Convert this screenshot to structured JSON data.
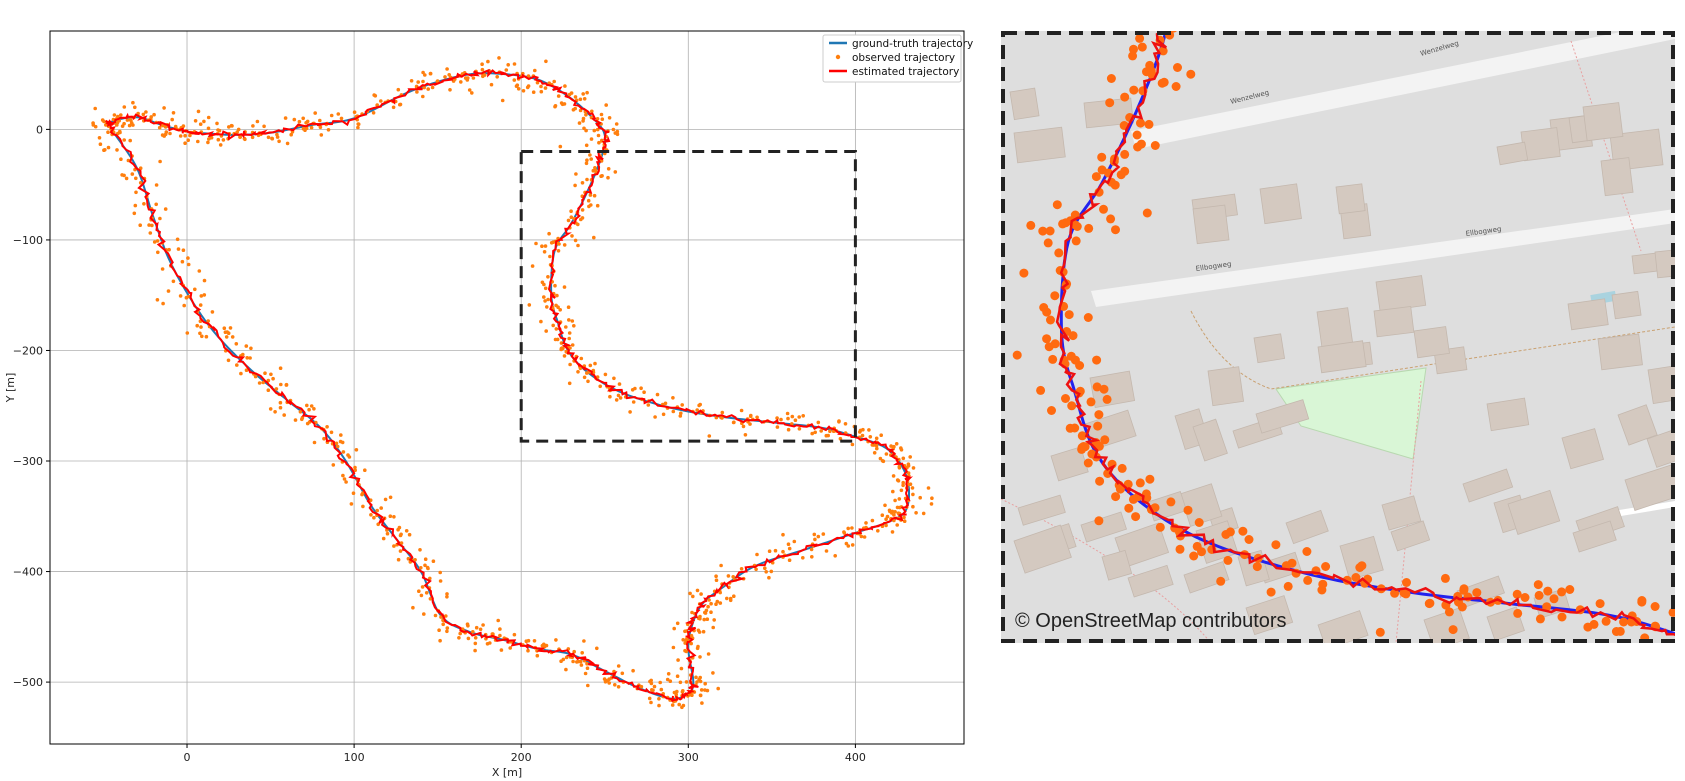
{
  "chart_data": {
    "type": "line",
    "xlabel": "X [m]",
    "ylabel": "Y [m]",
    "xlim": [
      -82,
      465
    ],
    "ylim": [
      -556,
      89
    ],
    "grid": true,
    "xticks": [
      0,
      100,
      200,
      300,
      400
    ],
    "yticks": [
      0,
      -100,
      -200,
      -300,
      -400,
      -500
    ],
    "xtick_labels": [
      "0",
      "100",
      "200",
      "300",
      "400"
    ],
    "ytick_labels": [
      "0",
      "−100",
      "−200",
      "−300",
      "−400",
      "−500"
    ],
    "legend_position": "top-right",
    "series": [
      {
        "name": "ground-truth trajectory",
        "style": "line",
        "color": "#1f77b4",
        "x": [
          -45,
          -30,
          -15,
          0,
          15,
          30,
          50,
          75,
          100,
          130,
          150,
          170,
          190,
          210,
          228,
          243,
          250,
          248,
          240,
          230,
          220,
          218,
          222,
          228,
          240,
          260,
          290,
          320,
          350,
          380,
          400,
          418,
          428,
          432,
          430,
          420,
          400,
          370,
          340,
          320,
          308,
          302,
          300,
          303,
          300,
          290,
          270,
          250,
          230,
          210,
          190,
          170,
          152,
          140,
          125,
          110,
          95,
          80,
          60,
          40,
          20,
          5,
          -10,
          -20,
          -30,
          -45
        ],
        "y": [
          7,
          11,
          4,
          -2,
          -4,
          -5,
          -3,
          4,
          10,
          32,
          43,
          50,
          50,
          45,
          30,
          10,
          -5,
          -25,
          -55,
          -85,
          -110,
          -150,
          -175,
          -200,
          -220,
          -238,
          -252,
          -260,
          -265,
          -270,
          -278,
          -288,
          -305,
          -325,
          -345,
          -355,
          -365,
          -380,
          -395,
          -415,
          -430,
          -450,
          -470,
          -500,
          -510,
          -515,
          -505,
          -490,
          -475,
          -470,
          -462,
          -455,
          -440,
          -400,
          -370,
          -340,
          -300,
          -270,
          -245,
          -220,
          -190,
          -160,
          -120,
          -80,
          -35,
          0
        ]
      },
      {
        "name": "observed trajectory",
        "style": "scatter",
        "color": "#ff7f0e",
        "n_points": 1100
      },
      {
        "name": "estimated trajectory",
        "style": "line",
        "color": "#ff0000",
        "x": [
          -45,
          -30,
          -15,
          0,
          15,
          30,
          50,
          75,
          100,
          130,
          150,
          170,
          190,
          210,
          228,
          243,
          250,
          248,
          240,
          230,
          220,
          218,
          222,
          228,
          240,
          260,
          290,
          320,
          350,
          380,
          400,
          418,
          428,
          432,
          430,
          420,
          400,
          370,
          340,
          320,
          308,
          302,
          300,
          303,
          300,
          290,
          270,
          250,
          230,
          210,
          190,
          170,
          152,
          140,
          125,
          110,
          95,
          80,
          60,
          40,
          20,
          5,
          -10,
          -20,
          -30,
          -45
        ],
        "y": [
          7,
          11,
          4,
          -2,
          -4,
          -5,
          -3,
          4,
          10,
          32,
          43,
          50,
          50,
          45,
          30,
          10,
          -5,
          -25,
          -55,
          -85,
          -110,
          -150,
          -175,
          -200,
          -220,
          -238,
          -252,
          -260,
          -265,
          -270,
          -278,
          -288,
          -305,
          -325,
          -345,
          -355,
          -365,
          -380,
          -395,
          -415,
          -430,
          -450,
          -470,
          -500,
          -510,
          -515,
          -505,
          -490,
          -475,
          -470,
          -462,
          -455,
          -440,
          -400,
          -370,
          -340,
          -300,
          -270,
          -245,
          -220,
          -190,
          -160,
          -120,
          -80,
          -35,
          0
        ]
      }
    ],
    "zoom_box": {
      "x": [
        200,
        400
      ],
      "y": [
        -20,
        -282
      ]
    },
    "colors": {
      "ground_truth": "#1f77b4",
      "observed": "#ff7f0e",
      "estimated": "#ff0000",
      "grid": "#b0b0b0"
    }
  },
  "map": {
    "attribution": "© OpenStreetMap contributors",
    "colors": {
      "background": "#dedede",
      "building": "#d4c9c0",
      "road": "#f3f3f3",
      "park": "#d9f6d6",
      "water": "#aad3df",
      "truth": "#2222ee",
      "estimated": "#ee1111",
      "observed": "#ff6a10"
    }
  }
}
